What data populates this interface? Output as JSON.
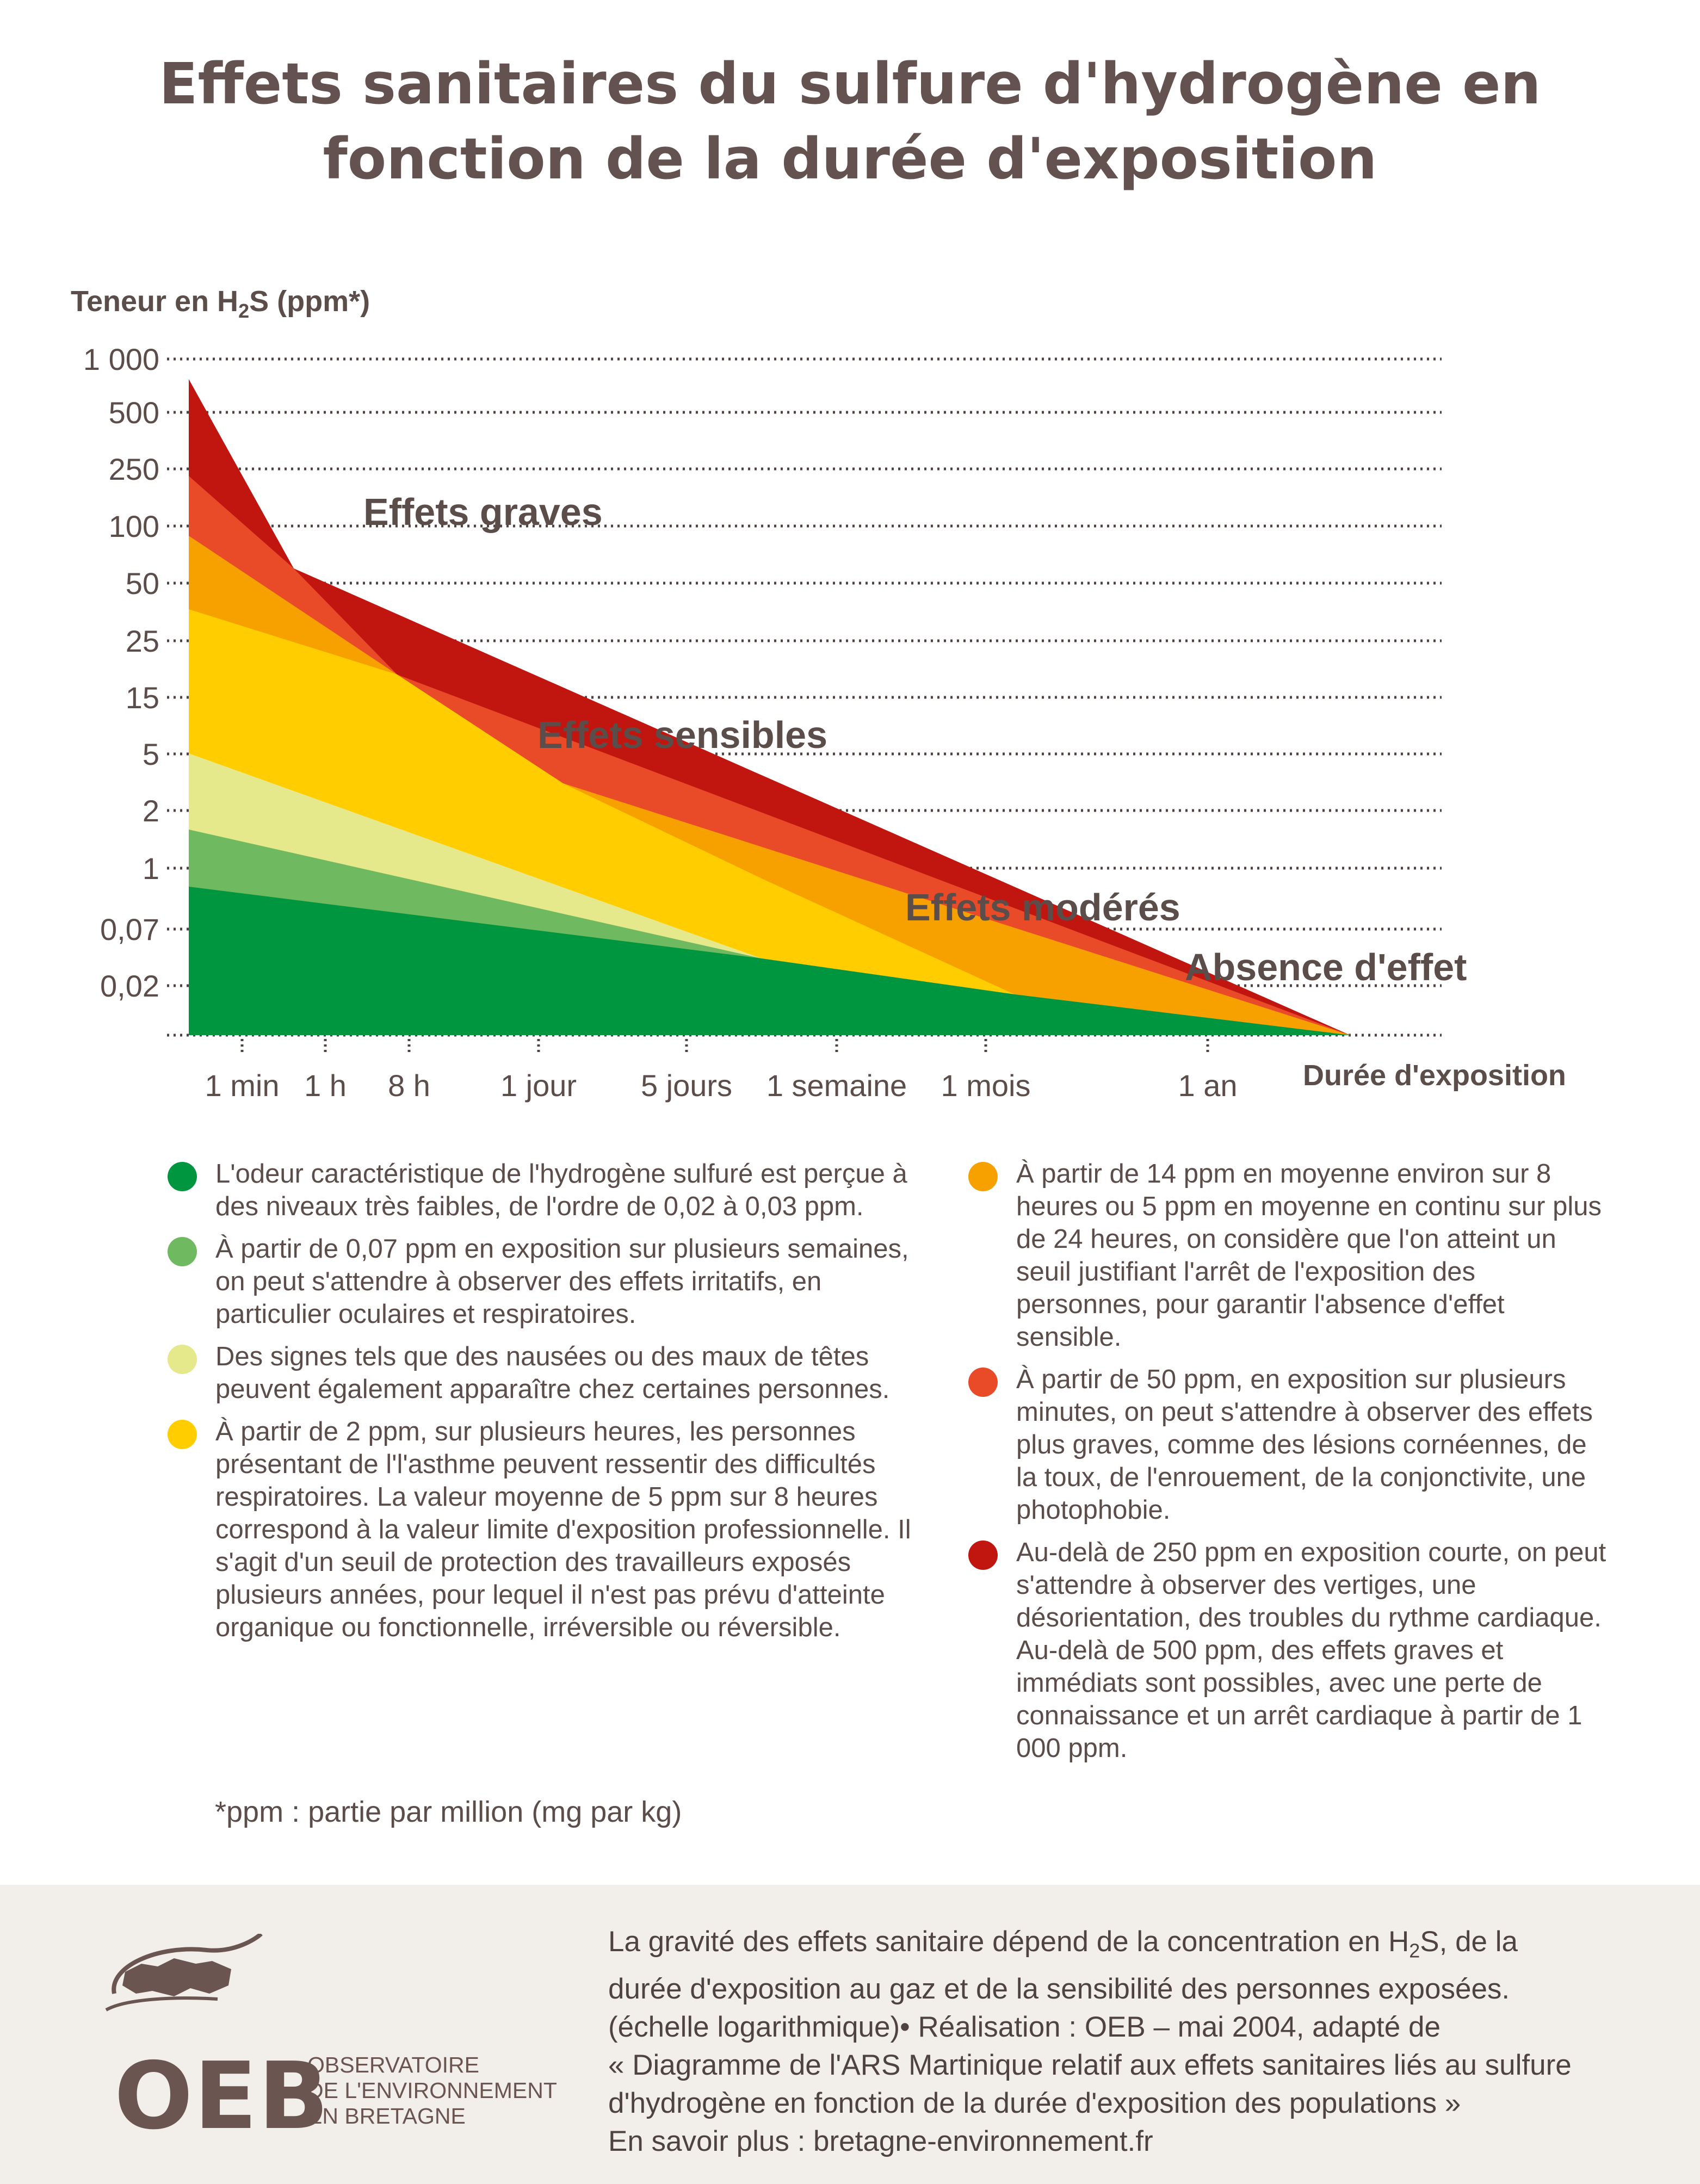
{
  "title_line1": "Effets sanitaires du sulfure d'hydrogène en",
  "title_line2": "fonction de la durée d'exposition",
  "colors": {
    "absence": "#009640",
    "light_green": "#6fba60",
    "pale_yellow": "#e6e88c",
    "yellow": "#ffcd00",
    "orange": "#f6a100",
    "red_orange": "#e94b28",
    "dark_red": "#c1150f"
  },
  "chart_data": {
    "type": "area",
    "y_axis_title": "Teneur en H",
    "y_axis_sub": "2",
    "y_axis_title_end": "S (ppm*)",
    "y_scale": "log (non-uniform ticks)",
    "y_ticks": [
      "1 000",
      "500",
      "250",
      "100",
      "50",
      "25",
      "15",
      "5",
      "2",
      "1",
      "0,07",
      "0,02"
    ],
    "x_label": "Durée d'exposition",
    "x_ticks": [
      "1 min",
      "1 h",
      "8 h",
      "1 jour",
      "5 jours",
      "1 semaine",
      "1 mois",
      "1 an"
    ],
    "zones": [
      {
        "name": "Effets graves",
        "upper": [
          "1 000 at 1 min",
          "50 at 1 h",
          "25 at 8 h"
        ]
      },
      {
        "name": "Effets sensibles",
        "upper": [
          "250 at 1 min",
          "15 at 8 h",
          "5 at 1 jour"
        ]
      },
      {
        "name": "Effets modérés",
        "upper": [
          "25 at 1 min",
          "5 at 1 jour",
          "0,02 at 1 mois"
        ]
      },
      {
        "name": "Absence d'effet",
        "upper": [
          "1 at 1 min",
          "0,07 at 5 jours",
          "0,02 at 1 mois",
          "0 after 1 an"
        ]
      }
    ],
    "zone_labels": [
      "Effets graves",
      "Effets sensibles",
      "Effets modérés",
      "Absence d'effet"
    ],
    "grid": "dotted horizontal lines"
  },
  "legend_left": [
    {
      "color": "#009640",
      "text": "L'odeur caractéristique de l'hydrogène sulfuré est perçue à des niveaux très faibles, de l'ordre de 0,02 à 0,03 ppm."
    },
    {
      "color": "#6fba60",
      "text": "À partir de 0,07 ppm en exposition sur plusieurs semaines, on peut s'attendre à observer des effets irritatifs, en particulier oculaires et respiratoires."
    },
    {
      "color": "#e6e88c",
      "text": "Des signes tels que des nausées ou des maux de têtes peuvent également apparaître chez certaines personnes."
    },
    {
      "color": "#ffcd00",
      "text": "À partir de 2 ppm, sur plusieurs heures, les personnes présentant de l'l'asthme peuvent ressentir des difficultés respiratoires. La valeur moyenne de 5 ppm sur 8 heures correspond à la valeur limite d'exposition professionnelle. Il s'agit d'un seuil de protection des travailleurs exposés plusieurs années, pour lequel il n'est pas prévu d'atteinte organique ou fonctionnelle, irréversible ou réversible."
    }
  ],
  "legend_right": [
    {
      "color": "#f6a100",
      "text": "À partir de 14 ppm en moyenne environ sur 8 heures ou 5 ppm en moyenne en continu sur plus de 24 heures, on considère que l'on atteint un seuil justifiant l'arrêt de l'exposition des personnes, pour garantir l'absence d'effet sensible."
    },
    {
      "color": "#e94b28",
      "text": "À partir de 50 ppm, en exposition sur plusieurs minutes, on peut s'attendre à observer des effets plus graves, comme des lésions cornéennes, de la toux, de l'enrouement, de la conjonctivite, une photophobie."
    },
    {
      "color": "#c1150f",
      "text": "Au-delà de 250 ppm en exposition courte, on peut s'attendre à observer des vertiges, une désorientation, des troubles du rythme cardiaque. Au-delà de 500 ppm, des effets graves et immédiats sont possibles, avec une perte de connaissance et un arrêt cardiaque à partir de 1 000 ppm."
    }
  ],
  "footnote": "*ppm : partie par million (mg par kg)",
  "footer": {
    "line1a": "La gravité des effets sanitaire dépend de la concentration en H",
    "line1sub": "2",
    "line1b": "S, de la",
    "line2": "durée d'exposition au gaz et de la sensibilité des personnes exposées.",
    "line3": "(échelle logarithmique)• Réalisation : OEB – mai 2004, adapté de",
    "line4": "« Diagramme de l'ARS Martinique relatif aux effets sanitaires liés au sulfure",
    "line5": "d'hydrogène en fonction de la durée d'exposition des populations »",
    "line6": "En savoir plus : bretagne-environnement.fr"
  },
  "logo": {
    "acronym": "OEB",
    "line1": "OBSERVATOIRE",
    "line2": "DE L'ENVIRONNEMENT",
    "line3": "EN BRETAGNE",
    "icon": "brittany-map-icon"
  }
}
